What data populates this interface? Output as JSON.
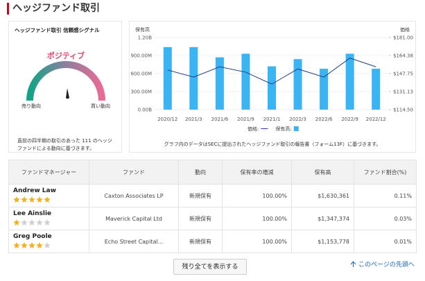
{
  "header": {
    "title": "ヘッジファンド取引"
  },
  "signal": {
    "title": "ヘッジファンド取引 信頼感シグナル",
    "status": "ポジティブ",
    "left_label": "売り動向",
    "right_label": "買い動向",
    "description": "直前の四半期の取引のあった 111 のヘッジファンドによる動向に基づきます。"
  },
  "chart_data": {
    "type": "bar",
    "y_label": "保有高",
    "y2_label": "価格",
    "categories": [
      "2020/12",
      "2021/3",
      "2021/6",
      "2021/9",
      "2021/1",
      "2022/3",
      "2022/6",
      "2022/9",
      "2022/12"
    ],
    "series": [
      {
        "name": "価格:",
        "type": "line",
        "axis": "y2",
        "color": "#1f3d8c",
        "values": [
          151,
          144.5,
          154,
          149,
          138,
          152,
          144.5,
          162,
          154
        ]
      },
      {
        "name": "保有高:",
        "type": "bar",
        "color": "#3ab4f2",
        "values": [
          1040000000,
          1040000000,
          870000000,
          930000000,
          720000000,
          840000000,
          680000000,
          930000000,
          680000000
        ]
      }
    ],
    "ylim": [
      0,
      1200000000
    ],
    "yticks": [
      {
        "value": 0,
        "label": "0.00B"
      },
      {
        "value": 300000000,
        "label": "300.00M"
      },
      {
        "value": 600000000,
        "label": "600.00M"
      },
      {
        "value": 900000000,
        "label": "900.00M"
      },
      {
        "value": 1200000000,
        "label": "1.20B"
      }
    ],
    "y2lim": [
      114.5,
      181
    ],
    "y2ticks": [
      {
        "value": 114.5,
        "label": "$114.50"
      },
      {
        "value": 131.13,
        "label": "$131.13"
      },
      {
        "value": 147.75,
        "label": "$147.75"
      },
      {
        "value": 164.38,
        "label": "$164.38"
      },
      {
        "value": 181,
        "label": "$181.00"
      }
    ],
    "grid": true,
    "note": "グラフ内のデータはSECに提出されたヘッジファンド取引の報告書（フォーム13F）に基づきます。"
  },
  "table": {
    "headers": [
      "ファンドマネージャー",
      "ファンド",
      "動向",
      "保有率の増減",
      "保有高",
      "ファンド割合(%)"
    ],
    "rows": [
      {
        "manager": "Andrew Law",
        "rating": 5,
        "fund": "Caxton Associates LP",
        "action": "新規保有",
        "change": "100.00%",
        "holdings": "$1,630,361",
        "share": "0.11%"
      },
      {
        "manager": "Lee Ainslie",
        "rating": 1,
        "fund": "Maverick Capital Ltd",
        "action": "新規保有",
        "change": "100.00%",
        "holdings": "$1,347,374",
        "share": "0.03%"
      },
      {
        "manager": "Greg Poole",
        "rating": 4,
        "fund": "Echo Street Capital...",
        "action": "新規保有",
        "change": "100.00%",
        "holdings": "$1,153,778",
        "share": "0.01%"
      }
    ]
  },
  "button": "残り全てを表示する",
  "back_to_top": "このページの先頭へ"
}
